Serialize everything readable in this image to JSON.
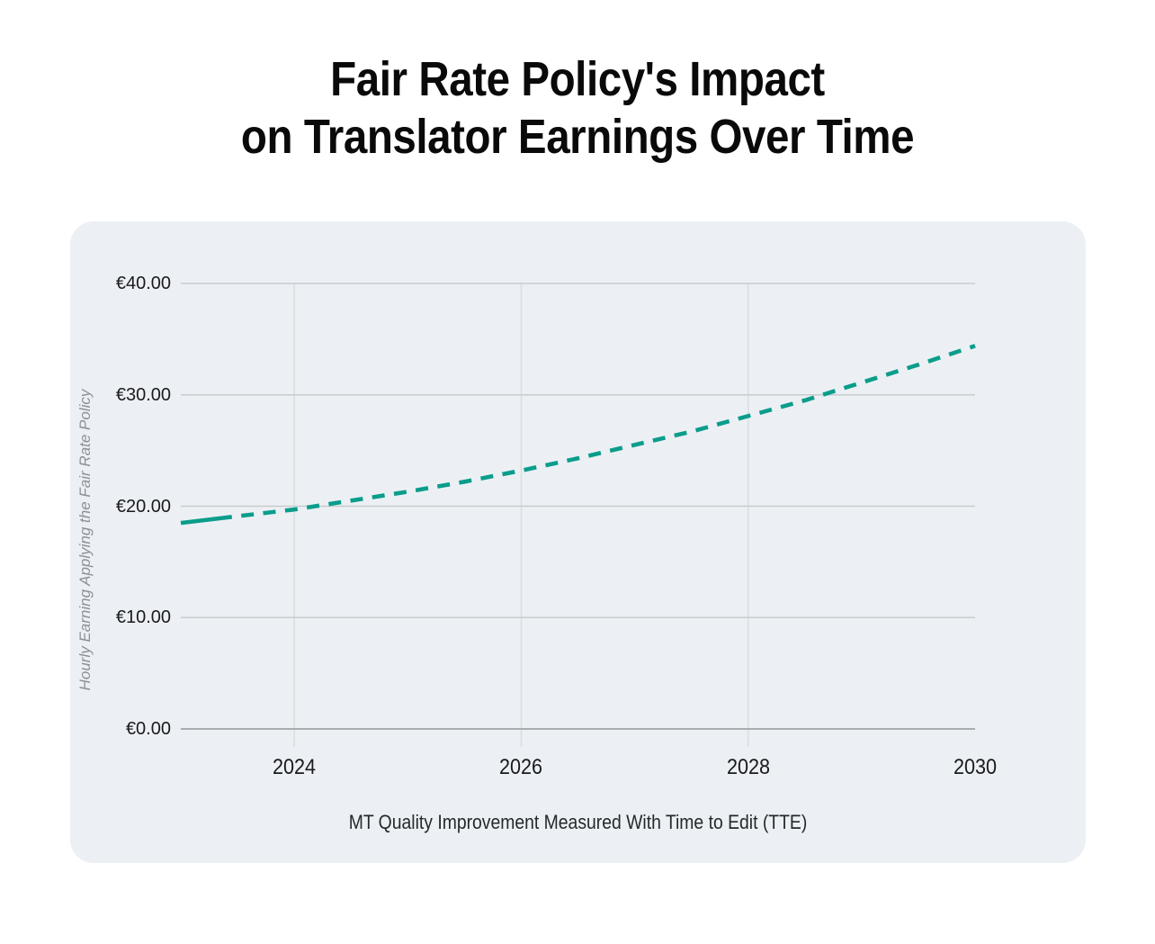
{
  "page": {
    "title_lines": [
      "Fair Rate Policy's Impact",
      "on Translator Earnings Over Time"
    ]
  },
  "colors": {
    "accent_teal": "#0a9d8b",
    "card_background": "#ecf0f4",
    "grid_line": "#c8cbce",
    "grid_line_vertical": "#dcdee0",
    "axis_zero_line": "#a9acae",
    "title_text": "#0a0a0a",
    "tick_text": "#1a1a1a",
    "x_axis_label_text": "#26292b",
    "y_axis_title_text": "#8c9198"
  },
  "chart_data": {
    "type": "line",
    "title": "Fair Rate Policy's Impact on Translator Earnings Over Time",
    "xlabel": "MT Quality Improvement Measured With Time to Edit (TTE)",
    "ylabel": "Hourly Earning Applying the Fair Rate Policy",
    "xlim": [
      2023,
      2030
    ],
    "ylim": [
      0,
      40
    ],
    "grid": true,
    "legend_position": "none",
    "x_tick_values": [
      2024,
      2026,
      2028,
      2030
    ],
    "x_tick_labels": [
      "2024",
      "2026",
      "2028",
      "2030"
    ],
    "y_tick_values": [
      0,
      10,
      20,
      30,
      40
    ],
    "y_tick_labels": [
      "€0.00",
      "€10.00",
      "€20.00",
      "€30.00",
      "€40.00"
    ],
    "grid_vertical_at": [
      2024,
      2026,
      2028
    ],
    "series": [
      {
        "color": "#0a9d8b",
        "line_style": "solid start, then dashed projection",
        "solid_until_x": 2023.45,
        "x": [
          2023,
          2023.5,
          2024,
          2024.5,
          2025,
          2025.5,
          2026,
          2026.5,
          2027,
          2027.5,
          2028,
          2028.5,
          2029,
          2029.5,
          2030
        ],
        "y": [
          18.5,
          19.1,
          19.7,
          20.5,
          21.3,
          22.2,
          23.2,
          24.3,
          25.5,
          26.7,
          28.1,
          29.5,
          31.1,
          32.7,
          34.4
        ]
      }
    ]
  }
}
